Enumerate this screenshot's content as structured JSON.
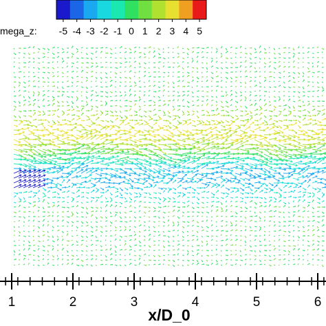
{
  "chart_data": {
    "type": "vector-field",
    "colorbar": {
      "label": "mega_z:",
      "ticks": [
        "-5",
        "-4",
        "-3",
        "-2",
        "-1",
        "0",
        "1",
        "2",
        "3",
        "4",
        "5"
      ],
      "values": [
        -5,
        -4,
        -3,
        -2,
        -1,
        0,
        1,
        2,
        3,
        4,
        5
      ],
      "colors": [
        "#1a1acc",
        "#1a66e6",
        "#1aa8f0",
        "#1ad8e0",
        "#1ae8b0",
        "#30e060",
        "#70e040",
        "#b0e030",
        "#e8e030",
        "#f0a020",
        "#e81a1a"
      ]
    },
    "x_axis": {
      "label": "x/D_0",
      "ticks": [
        "1",
        "2",
        "3",
        "4",
        "5",
        "6"
      ],
      "values": [
        1,
        2,
        3,
        4,
        5,
        6
      ],
      "range": [
        0.97,
        6.25
      ]
    },
    "grid": false
  }
}
